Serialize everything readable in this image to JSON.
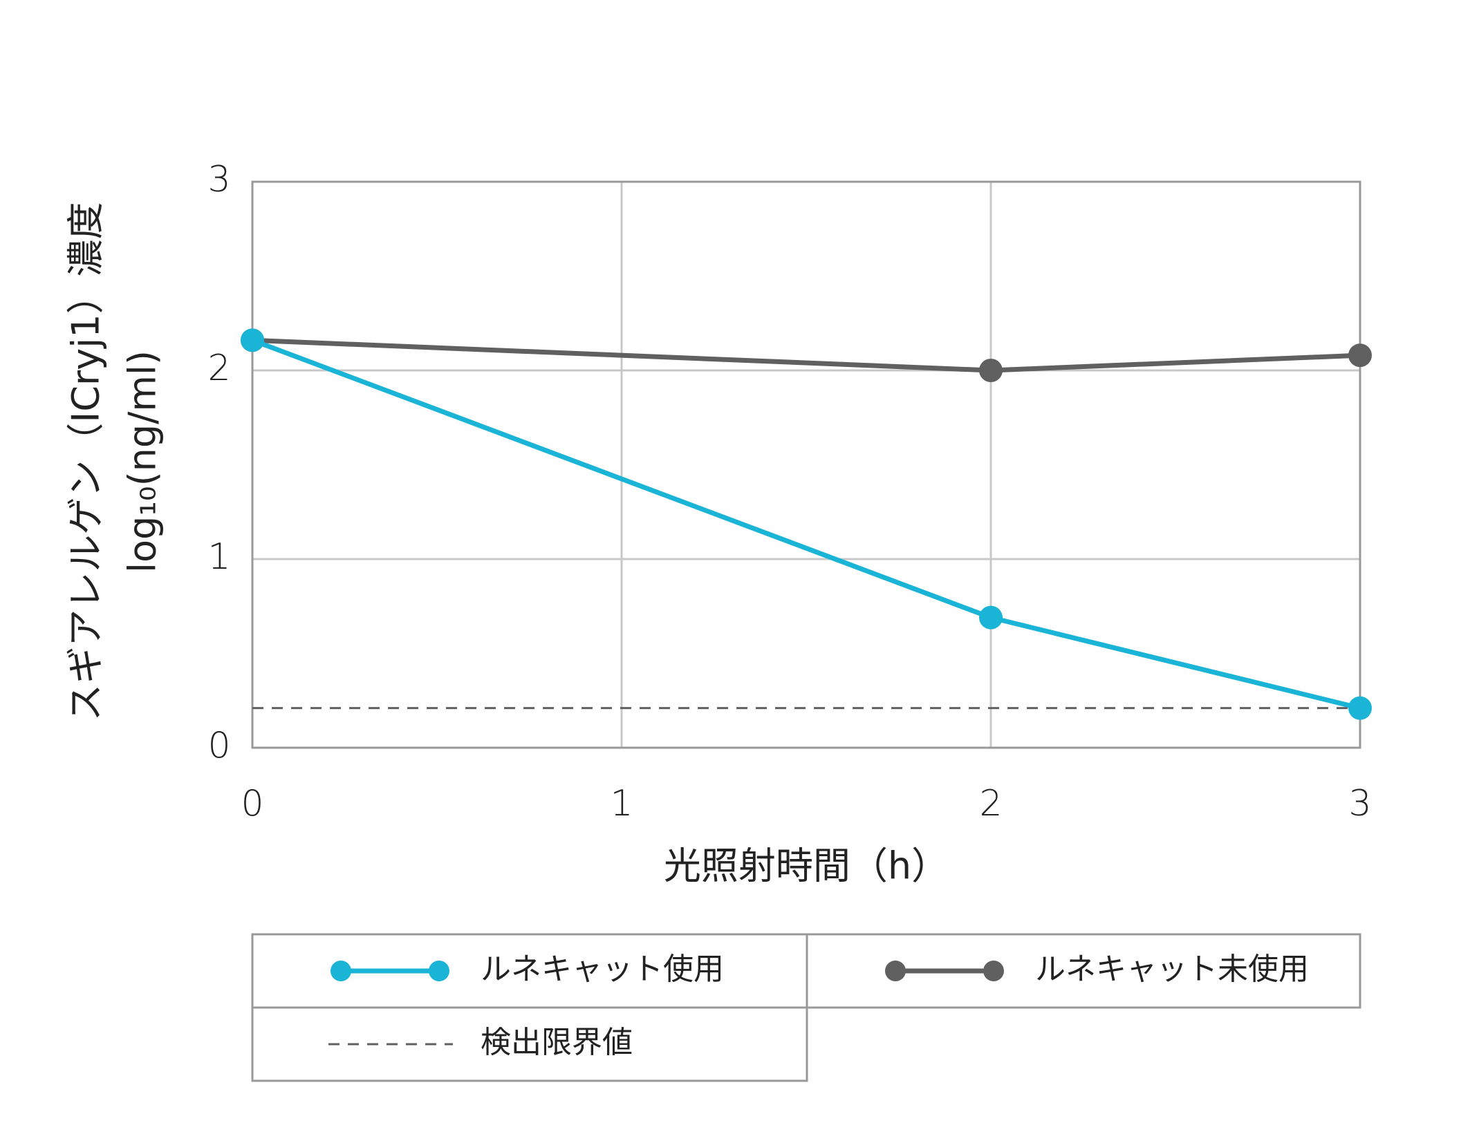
{
  "chart_data": {
    "type": "line",
    "xlabel": "光照射時間（h）",
    "ylabel": [
      "スギアレルゲン（ICryj1）濃度",
      "log₁₀(ng/ml)"
    ],
    "x": [
      0,
      2,
      3
    ],
    "series": [
      {
        "name": "ルネキャット使用",
        "color": "#1ab4d6",
        "values": [
          2.16,
          0.69,
          0.21
        ]
      },
      {
        "name": "ルネキャット未使用",
        "color": "#606060",
        "values": [
          2.16,
          2.0,
          2.08
        ]
      }
    ],
    "threshold": {
      "name": "検出限界値",
      "value": 0.21,
      "color": "#606060"
    },
    "xlim": [
      0,
      3
    ],
    "xticks": [
      0,
      1,
      2,
      3
    ],
    "ylim": [
      0,
      3
    ],
    "yticks": [
      0,
      1,
      2,
      3
    ],
    "grid": true,
    "legend": "bottom"
  }
}
